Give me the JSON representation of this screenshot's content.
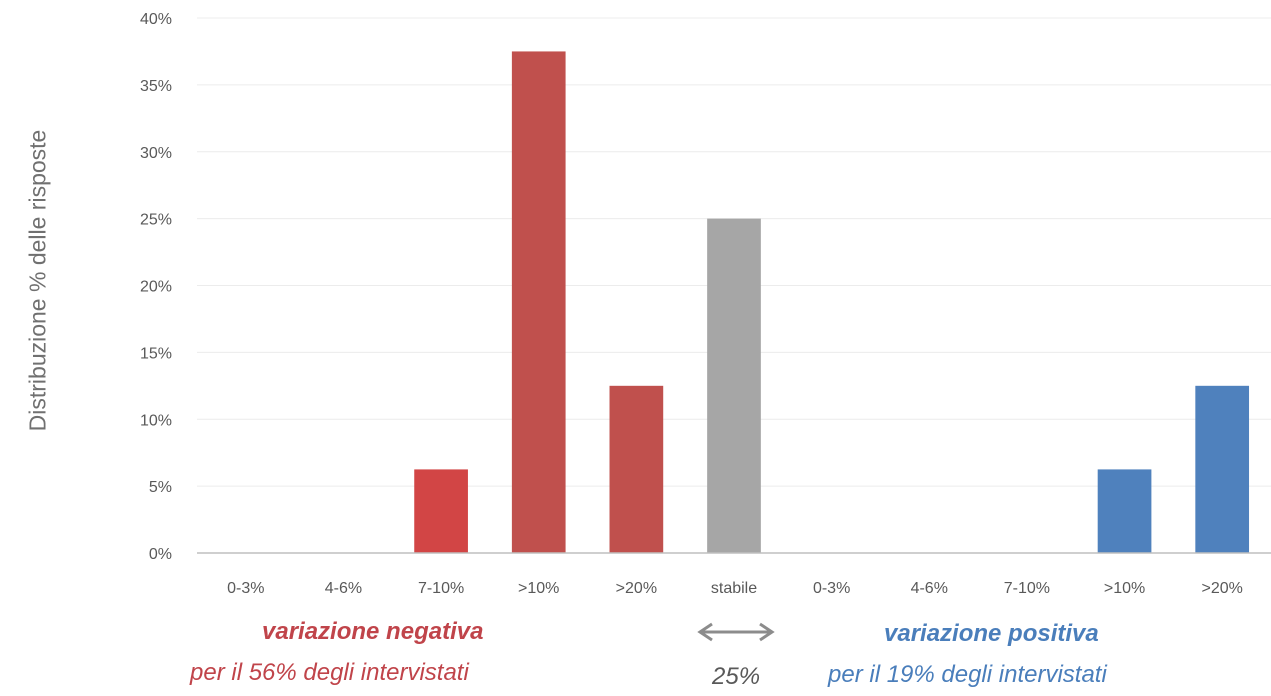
{
  "chart_data": {
    "type": "bar",
    "ylabel": "Distribuzione % delle risposte",
    "ylim": [
      0,
      40
    ],
    "yticks": [
      "0%",
      "5%",
      "10%",
      "15%",
      "20%",
      "25%",
      "30%",
      "35%",
      "40%"
    ],
    "grid": true,
    "categories": [
      "0-3%",
      "4-6%",
      "7-10%",
      ">10%",
      ">20%",
      "stabile",
      "0-3%",
      "4-6%",
      "7-10%",
      ">10%",
      ">20%"
    ],
    "values": [
      0,
      0,
      6.25,
      37.5,
      12.5,
      25,
      0,
      0,
      0,
      6.25,
      12.5
    ],
    "bar_colors": [
      "#c0504d",
      "#c0504d",
      "#d24545",
      "#c0504d",
      "#c0504d",
      "#a6a6a6",
      "#4f81bd",
      "#4f81bd",
      "#4f81bd",
      "#4f81bd",
      "#4f81bd"
    ],
    "annotations": {
      "negative": {
        "title": "variazione negativa",
        "subtitle": "per il 56% degli intervistati",
        "color": "#c0444a"
      },
      "stable": {
        "value": "25%",
        "arrow_color": "#8c8c8c"
      },
      "positive": {
        "title": "variazione positiva",
        "subtitle": "per il 19% degli intervistati",
        "color": "#4a7ebb"
      }
    }
  }
}
